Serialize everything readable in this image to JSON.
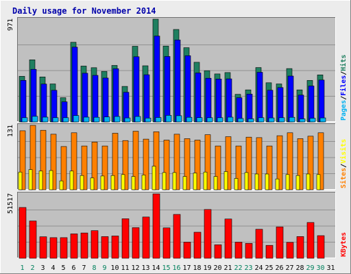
{
  "chart_data": {
    "type": "bar",
    "title": "Daily usage for November 2014",
    "colors": {
      "page_bg": "#ececec",
      "plot_bg": "#c0c0c0",
      "grid": "#808080",
      "title": "#0000aa",
      "hits": "#1f7f60",
      "files": "#0000ff",
      "pages": "#00b0f0",
      "visits": "#ff8000",
      "sites": "#ffff00",
      "kbytes": "#ff0000",
      "weekend_day": "#00805c",
      "weekday": "#000000"
    },
    "days": [
      "1",
      "2",
      "3",
      "4",
      "5",
      "6",
      "7",
      "8",
      "9",
      "10",
      "11",
      "12",
      "13",
      "14",
      "15",
      "16",
      "17",
      "18",
      "19",
      "20",
      "21",
      "22",
      "23",
      "24",
      "25",
      "26",
      "27",
      "28",
      "29",
      "30",
      "31"
    ],
    "weekend_days": [
      1,
      2,
      8,
      9,
      15,
      16,
      22,
      23,
      29,
      30
    ],
    "panels": [
      {
        "id": "top",
        "max_label": "971",
        "ylim": [
          0,
          971
        ],
        "legend": [
          {
            "text": "Pages",
            "color": "#00b0f0"
          },
          {
            "text": "Files",
            "color": "#0000ff"
          },
          {
            "text": "Hits",
            "color": "#1f7f60"
          }
        ],
        "series": [
          {
            "name": "Hits",
            "values": [
              431,
              587,
              425,
              359,
              229,
              753,
              528,
              513,
              478,
              534,
              336,
              715,
              531,
              971,
              717,
              874,
              702,
              564,
              484,
              454,
              467,
              261,
              303,
              514,
              370,
              359,
              504,
              303,
              392,
              445,
              null
            ]
          },
          {
            "name": "Files",
            "values": [
              393,
              497,
              358,
              299,
              190,
              707,
              460,
              440,
              415,
              503,
              280,
              616,
              446,
              812,
              619,
              775,
              626,
              463,
              413,
              405,
              407,
              229,
              263,
              469,
              300,
              325,
              434,
              254,
              340,
              396,
              null
            ]
          },
          {
            "name": "Pages",
            "values": [
              40,
              53,
              45,
              40,
              40,
              60,
              45,
              44,
              47,
              52,
              38,
              52,
              37,
              42,
              62,
              59,
              44,
              41,
              40,
              40,
              45,
              33,
              30,
              40,
              38,
              40,
              44,
              29,
              35,
              38,
              null
            ]
          }
        ]
      },
      {
        "id": "middle",
        "max_label": "131",
        "ylim": [
          0,
          131
        ],
        "legend": [
          {
            "text": "Sites",
            "color": "#ff8000"
          },
          {
            "text": "Visits",
            "color": "#ffff00"
          }
        ],
        "series": [
          {
            "name": "Visits",
            "values": [
              120,
              131,
              121,
              113,
              88,
              116,
              89,
              97,
              89,
              115,
              100,
              119,
              103,
              118,
              101,
              113,
              104,
              101,
              112,
              89,
              108,
              89,
              107,
              106,
              89,
              110,
              116,
              104,
              109,
              116,
              null
            ]
          },
          {
            "name": "Sites",
            "values": [
              36,
              41,
              38,
              39,
              18,
              38,
              29,
              24,
              28,
              29,
              31,
              27,
              30,
              48,
              35,
              35,
              27,
              34,
              36,
              27,
              37,
              23,
              35,
              32,
              32,
              22,
              31,
              29,
              32,
              31,
              null
            ]
          }
        ]
      },
      {
        "id": "bottom",
        "max_label": "51517",
        "ylim": [
          0,
          51517
        ],
        "legend": [
          {
            "text": "KBytes",
            "color": "#ff0000"
          }
        ],
        "series": [
          {
            "name": "KBytes",
            "values": [
              40600,
              29800,
              17200,
              16500,
              16500,
              19500,
              20200,
              22100,
              17300,
              17800,
              31600,
              24500,
              33000,
              51517,
              24300,
              35100,
              12900,
              20800,
              39000,
              10800,
              31400,
              12900,
              11900,
              23200,
              10300,
              25100,
              12700,
              17400,
              28600,
              18100,
              null
            ]
          }
        ]
      }
    ]
  }
}
